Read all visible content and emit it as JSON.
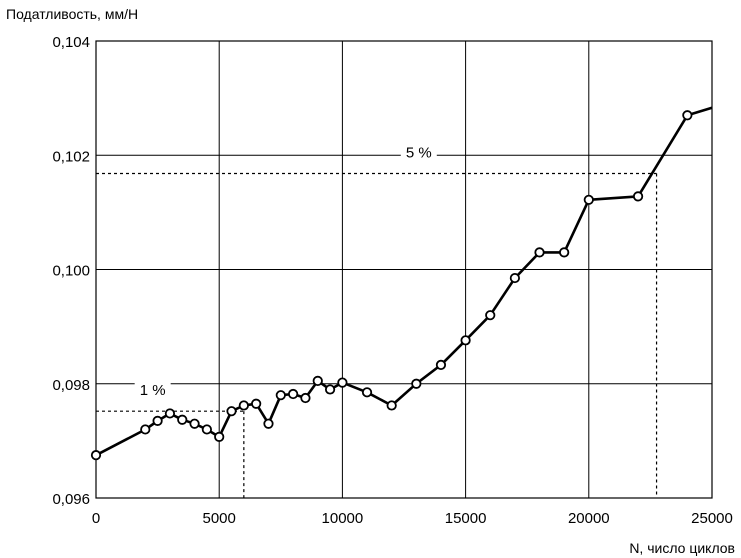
{
  "chart_data": {
    "type": "line",
    "ylabel": "Податливость, мм/Н",
    "xlabel": "N, число циклов",
    "xlim": [
      0,
      25000
    ],
    "ylim": [
      0.096,
      0.104
    ],
    "x_ticks": [
      0,
      5000,
      10000,
      15000,
      20000,
      25000
    ],
    "x_tick_labels": [
      "0",
      "5000",
      "10000",
      "15000",
      "20000",
      "25000"
    ],
    "y_ticks": [
      0.096,
      0.098,
      0.1,
      0.102,
      0.104
    ],
    "y_tick_labels": [
      "0,096",
      "0,098",
      "0,100",
      "0,102",
      "0,104"
    ],
    "grid": true,
    "series": [
      {
        "x": [
          0,
          2000,
          2500,
          3000,
          3500,
          4000,
          4500,
          5000,
          5500,
          6000,
          6500,
          7000,
          7500,
          8000,
          8500,
          9000,
          9500,
          10000,
          11000,
          12000,
          13000,
          14000,
          15000,
          16000,
          17000,
          18000,
          19000,
          20000,
          22000,
          24000,
          25000
        ],
        "y": [
          0.09675,
          0.0972,
          0.09735,
          0.09748,
          0.09737,
          0.0973,
          0.0972,
          0.09707,
          0.09752,
          0.09762,
          0.09765,
          0.0973,
          0.0978,
          0.09782,
          0.09775,
          0.09805,
          0.0979,
          0.09802,
          0.09785,
          0.09762,
          0.098,
          0.09833,
          0.09876,
          0.0992,
          0.09985,
          0.1003,
          0.1003,
          0.10122,
          0.10128,
          0.1027,
          0.10283
        ],
        "markers": [
          true,
          true,
          true,
          true,
          true,
          true,
          true,
          true,
          true,
          true,
          true,
          true,
          true,
          true,
          true,
          true,
          true,
          true,
          true,
          true,
          true,
          true,
          true,
          true,
          true,
          true,
          true,
          true,
          true,
          true,
          false
        ]
      }
    ],
    "annotations": [
      {
        "text": "1 %",
        "label_x": 2300,
        "level_y": 0.09752,
        "cross_x": 6000
      },
      {
        "text": "5 %",
        "label_x": 13100,
        "level_y": 0.10168,
        "cross_x": 22750
      }
    ]
  }
}
